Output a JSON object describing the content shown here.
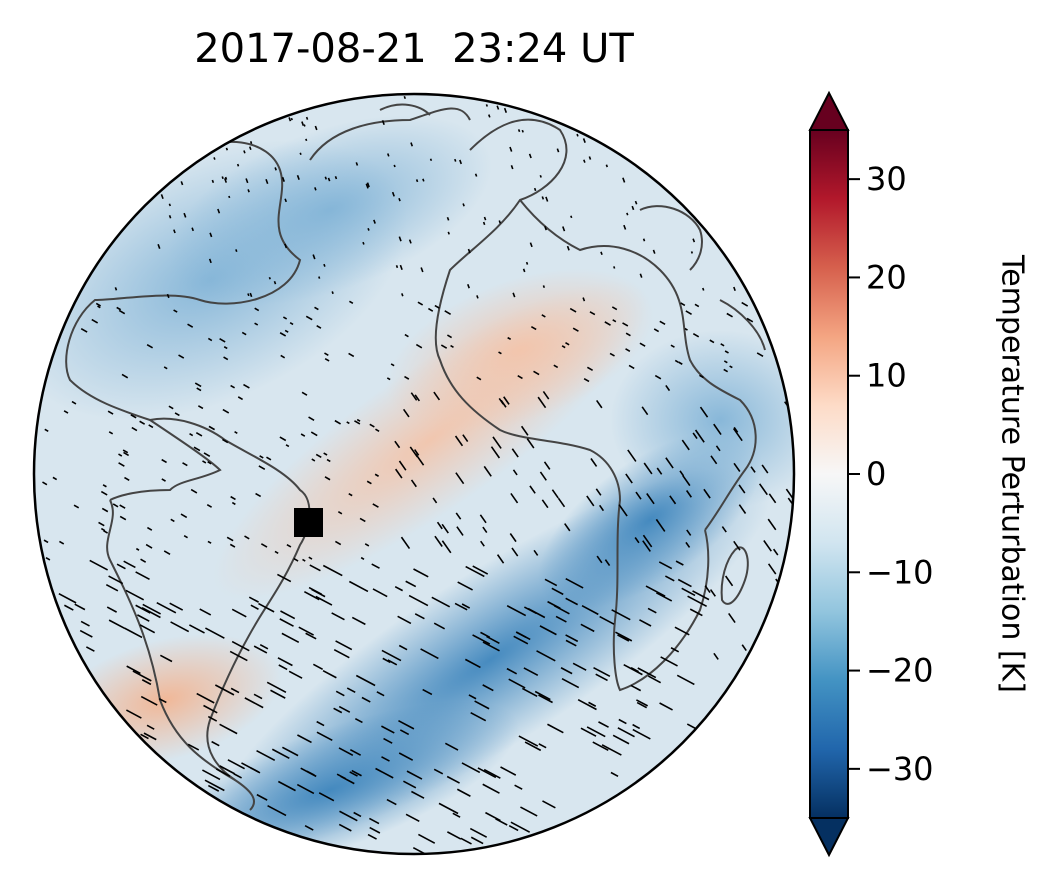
{
  "title": "2017-08-21  23:24 UT",
  "colorbar": {
    "label": "Temperature Perturbation [K]",
    "ticks": [
      30,
      20,
      10,
      0,
      -10,
      -20,
      -30
    ],
    "tick_labels": [
      "30",
      "20",
      "10",
      "0",
      "−10",
      "−20",
      "−30"
    ],
    "range": [
      -35,
      35
    ],
    "colormap": "RdBu_r",
    "colors": [
      "#053061",
      "#2166ac",
      "#4393c3",
      "#92c5de",
      "#d1e5f0",
      "#f7f7f7",
      "#fddbc7",
      "#f4a582",
      "#d6604d",
      "#b2182b",
      "#67001f"
    ],
    "extend": "both"
  },
  "map": {
    "projection": "orthographic",
    "coastline_color": "#444444",
    "marker_color": "#000000"
  }
}
